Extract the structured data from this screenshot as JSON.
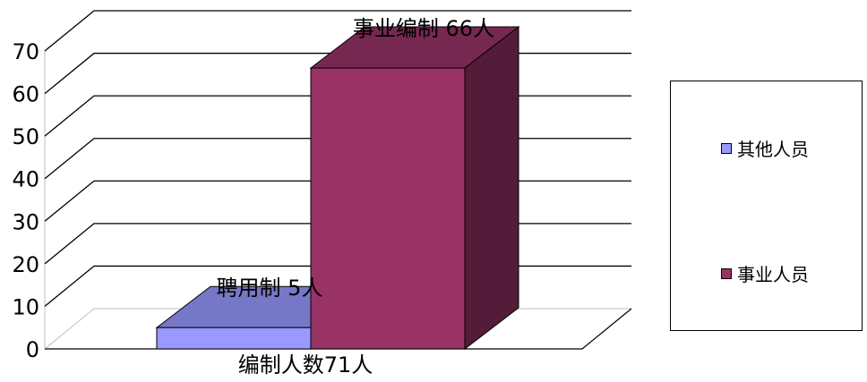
{
  "chart_data": {
    "type": "bar",
    "subtype": "3d-clustered",
    "title": "",
    "xlabel": "",
    "ylabel": "",
    "categories": [
      "编制人数71人"
    ],
    "ylim": [
      0,
      70
    ],
    "yticks": [
      0,
      10,
      20,
      30,
      40,
      50,
      60,
      70
    ],
    "grid": true,
    "legend_position": "right",
    "series": [
      {
        "name": "其他人员",
        "values": [
          5
        ],
        "color": "#9999FF",
        "data_label": "聘用制 5人"
      },
      {
        "name": "事业人员",
        "values": [
          66
        ],
        "color": "#993366",
        "data_label": "事业编制 66人"
      }
    ]
  }
}
